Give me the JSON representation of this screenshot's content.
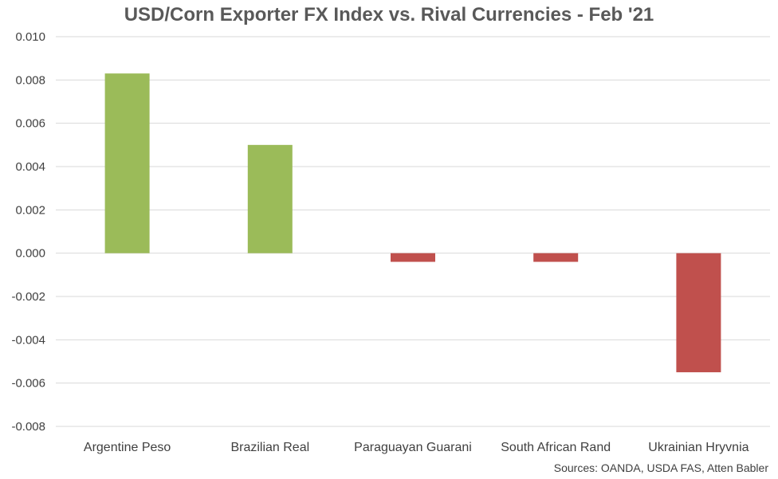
{
  "chart_data": {
    "type": "bar",
    "title": "USD/Corn Exporter FX Index vs. Rival Currencies - Feb '21",
    "source": "Sources: OANDA, USDA FAS, Atten Babler",
    "categories": [
      "Argentine Peso",
      "Brazilian Real",
      "Paraguayan Guarani",
      "South African Rand",
      "Ukrainian Hryvnia"
    ],
    "values": [
      0.0083,
      0.005,
      -0.0004,
      -0.0004,
      -0.0055
    ],
    "ylim": [
      -0.008,
      0.01
    ],
    "yticks": [
      "0.010",
      "0.008",
      "0.006",
      "0.004",
      "0.002",
      "0.000",
      "-0.002",
      "-0.004",
      "-0.006",
      "-0.008"
    ],
    "grid": true,
    "colors": {
      "positive": "#9BBB59",
      "negative": "#C0504D",
      "grid": "#D9D9D9"
    }
  }
}
